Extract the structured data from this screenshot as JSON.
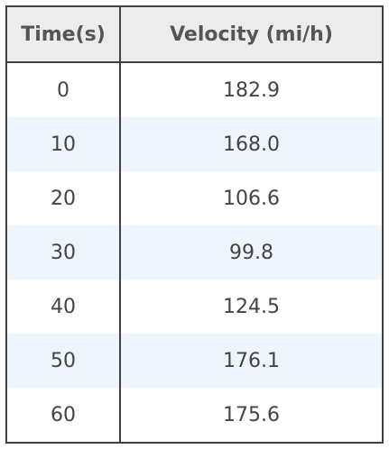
{
  "table": {
    "headers": [
      "Time(s)",
      "Velocity (mi/h)"
    ],
    "rows": [
      {
        "time": "0",
        "velocity": "182.9"
      },
      {
        "time": "10",
        "velocity": "168.0"
      },
      {
        "time": "20",
        "velocity": "106.6"
      },
      {
        "time": "30",
        "velocity": "99.8"
      },
      {
        "time": "40",
        "velocity": "124.5"
      },
      {
        "time": "50",
        "velocity": "176.1"
      },
      {
        "time": "60",
        "velocity": "175.6"
      }
    ]
  },
  "colors": {
    "header_bg": "#ececec",
    "stripe_bg": "#eef5fc",
    "border": "#404040",
    "text": "#444444"
  }
}
